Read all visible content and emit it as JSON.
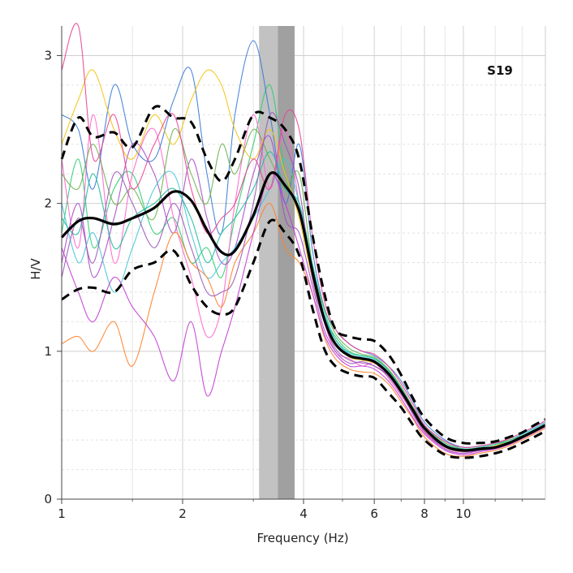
{
  "chart_data": {
    "type": "line",
    "title": "",
    "annotation": "S19",
    "xlabel": "Frequency (Hz)",
    "ylabel": "H/V",
    "x_scale": "log",
    "xlim": [
      1,
      16
    ],
    "ylim": [
      0,
      3.2
    ],
    "x_ticks": [
      1,
      2,
      4,
      6,
      8,
      10
    ],
    "y_ticks": [
      0,
      1,
      2,
      3
    ],
    "grid": true,
    "peak_frequency_band": {
      "f0_lower": 3.1,
      "f0": 3.45,
      "f0_upper": 3.8
    },
    "colors": {
      "band_light": "#c2c2c2",
      "band_dark": "#a0a0a0",
      "mean": "#000000",
      "std": "#000000",
      "windows": [
        "#2ecc71",
        "#ff66cc",
        "#3a7bd5",
        "#a64ac9",
        "#45c4d8",
        "#ff7f2a",
        "#6ab04c",
        "#c23bd4",
        "#f1c40f",
        "#1abc9c",
        "#9b59b6",
        "#e84393"
      ]
    },
    "series": [
      {
        "role": "mean",
        "x": [
          1,
          1.1,
          1.2,
          1.35,
          1.5,
          1.7,
          1.9,
          2.1,
          2.3,
          2.5,
          2.7,
          3.0,
          3.3,
          3.6,
          3.9,
          4.2,
          4.5,
          4.8,
          5.2,
          5.6,
          6.0,
          6.5,
          7.0,
          7.5,
          8.0,
          9.0,
          10,
          11,
          12,
          13,
          14,
          15,
          16
        ],
        "y": [
          1.77,
          1.88,
          1.9,
          1.86,
          1.9,
          1.97,
          2.08,
          2.02,
          1.82,
          1.67,
          1.68,
          1.92,
          2.2,
          2.12,
          1.95,
          1.55,
          1.22,
          1.05,
          0.97,
          0.95,
          0.93,
          0.85,
          0.73,
          0.6,
          0.48,
          0.36,
          0.33,
          0.34,
          0.35,
          0.38,
          0.42,
          0.46,
          0.5
        ]
      },
      {
        "role": "mean_plus_std",
        "x": [
          1,
          1.1,
          1.2,
          1.35,
          1.5,
          1.7,
          1.9,
          2.1,
          2.3,
          2.5,
          2.7,
          3.0,
          3.3,
          3.6,
          3.9,
          4.2,
          4.5,
          4.8,
          5.2,
          5.6,
          6.0,
          6.5,
          7.0,
          7.5,
          8.0,
          9.0,
          10,
          11,
          12,
          13,
          14,
          15,
          16
        ],
        "y": [
          2.3,
          2.58,
          2.45,
          2.48,
          2.38,
          2.65,
          2.58,
          2.55,
          2.3,
          2.15,
          2.3,
          2.6,
          2.58,
          2.5,
          2.3,
          1.8,
          1.4,
          1.15,
          1.1,
          1.08,
          1.07,
          0.98,
          0.84,
          0.68,
          0.55,
          0.42,
          0.38,
          0.38,
          0.39,
          0.42,
          0.45,
          0.5,
          0.54
        ]
      },
      {
        "role": "mean_minus_std",
        "x": [
          1,
          1.1,
          1.2,
          1.35,
          1.5,
          1.7,
          1.9,
          2.1,
          2.3,
          2.5,
          2.7,
          3.0,
          3.3,
          3.6,
          3.9,
          4.2,
          4.5,
          4.8,
          5.2,
          5.6,
          6.0,
          6.5,
          7.0,
          7.5,
          8.0,
          9.0,
          10,
          11,
          12,
          13,
          14,
          15,
          16
        ],
        "y": [
          1.35,
          1.42,
          1.43,
          1.4,
          1.55,
          1.6,
          1.68,
          1.45,
          1.3,
          1.25,
          1.3,
          1.6,
          1.88,
          1.8,
          1.65,
          1.3,
          1.02,
          0.9,
          0.85,
          0.83,
          0.82,
          0.72,
          0.62,
          0.5,
          0.4,
          0.3,
          0.28,
          0.29,
          0.31,
          0.34,
          0.38,
          0.42,
          0.46
        ]
      }
    ],
    "window_curves": {
      "x": [
        1,
        1.1,
        1.2,
        1.35,
        1.5,
        1.7,
        1.9,
        2.1,
        2.3,
        2.5,
        2.7,
        3.0,
        3.3,
        3.6,
        3.9,
        4.2,
        4.5,
        4.8,
        5.2,
        5.6,
        6.0,
        6.5,
        7.0,
        7.5,
        8.0,
        9.0,
        10,
        11,
        12,
        13,
        14,
        15,
        16
      ],
      "y": [
        [
          1.8,
          2.3,
          1.7,
          2.1,
          2.2,
          1.8,
          1.9,
          1.6,
          1.7,
          1.5,
          1.9,
          2.4,
          2.8,
          2.2,
          1.95,
          1.55,
          1.25,
          1.1,
          1.0,
          0.97,
          0.95,
          0.88,
          0.74,
          0.6,
          0.48,
          0.36,
          0.33,
          0.34,
          0.35,
          0.38,
          0.42,
          0.46,
          0.5
        ],
        [
          2.3,
          1.7,
          2.6,
          1.6,
          2.2,
          2.5,
          1.9,
          1.5,
          1.1,
          1.3,
          2.0,
          2.6,
          2.1,
          2.5,
          2.0,
          1.5,
          1.2,
          1.0,
          0.95,
          0.9,
          0.92,
          0.82,
          0.7,
          0.58,
          0.45,
          0.34,
          0.31,
          0.33,
          0.35,
          0.37,
          0.41,
          0.45,
          0.49
        ],
        [
          2.6,
          2.5,
          2.1,
          2.8,
          2.4,
          2.3,
          2.7,
          2.9,
          2.2,
          1.8,
          2.6,
          3.1,
          2.6,
          2.0,
          2.4,
          1.7,
          1.3,
          1.15,
          1.05,
          1.0,
          0.97,
          0.9,
          0.8,
          0.66,
          0.52,
          0.4,
          0.35,
          0.36,
          0.38,
          0.4,
          0.44,
          0.48,
          0.52
        ],
        [
          1.6,
          2.0,
          1.5,
          1.9,
          2.4,
          2.2,
          1.8,
          2.3,
          1.9,
          1.6,
          1.7,
          2.2,
          2.45,
          1.9,
          1.8,
          1.45,
          1.15,
          1.0,
          0.92,
          0.93,
          0.9,
          0.84,
          0.72,
          0.57,
          0.46,
          0.34,
          0.31,
          0.33,
          0.34,
          0.37,
          0.41,
          0.45,
          0.49
        ],
        [
          2.0,
          1.6,
          1.8,
          1.4,
          1.7,
          2.1,
          2.2,
          1.8,
          1.5,
          1.6,
          1.7,
          1.9,
          2.1,
          2.3,
          2.0,
          1.6,
          1.28,
          1.08,
          0.98,
          0.96,
          0.94,
          0.86,
          0.74,
          0.62,
          0.5,
          0.38,
          0.35,
          0.36,
          0.38,
          0.4,
          0.44,
          0.48,
          0.52
        ],
        [
          1.05,
          1.1,
          1.0,
          1.2,
          0.9,
          1.4,
          1.8,
          1.6,
          1.5,
          1.3,
          1.6,
          1.8,
          2.0,
          1.7,
          1.6,
          1.4,
          1.1,
          0.95,
          0.88,
          0.86,
          0.85,
          0.78,
          0.66,
          0.54,
          0.42,
          0.31,
          0.29,
          0.31,
          0.33,
          0.36,
          0.4,
          0.44,
          0.48
        ],
        [
          2.2,
          2.1,
          2.4,
          2.0,
          2.1,
          1.9,
          2.5,
          2.2,
          2.0,
          2.4,
          2.2,
          2.5,
          2.3,
          2.1,
          2.2,
          1.6,
          1.3,
          1.12,
          1.02,
          0.98,
          0.96,
          0.88,
          0.76,
          0.62,
          0.5,
          0.38,
          0.34,
          0.35,
          0.37,
          0.4,
          0.43,
          0.47,
          0.51
        ],
        [
          1.7,
          1.4,
          1.2,
          1.5,
          1.3,
          1.1,
          0.8,
          1.2,
          0.7,
          1.0,
          1.3,
          1.8,
          2.2,
          2.0,
          1.7,
          1.4,
          1.12,
          0.98,
          0.9,
          0.9,
          0.88,
          0.8,
          0.68,
          0.55,
          0.44,
          0.33,
          0.3,
          0.32,
          0.34,
          0.37,
          0.41,
          0.45,
          0.49
        ],
        [
          2.4,
          2.7,
          2.9,
          2.5,
          2.3,
          2.6,
          2.4,
          2.7,
          2.9,
          2.8,
          2.5,
          2.3,
          2.5,
          2.2,
          1.9,
          1.5,
          1.2,
          1.05,
          0.96,
          0.94,
          0.92,
          0.85,
          0.72,
          0.59,
          0.47,
          0.35,
          0.32,
          0.34,
          0.36,
          0.39,
          0.42,
          0.46,
          0.5
        ],
        [
          1.9,
          1.8,
          2.2,
          1.7,
          1.9,
          2.0,
          2.1,
          1.9,
          1.6,
          1.8,
          1.9,
          2.1,
          2.35,
          2.1,
          2.0,
          1.6,
          1.25,
          1.08,
          0.99,
          0.97,
          0.95,
          0.87,
          0.75,
          0.61,
          0.49,
          0.37,
          0.34,
          0.35,
          0.37,
          0.39,
          0.43,
          0.47,
          0.51
        ],
        [
          1.5,
          1.9,
          1.6,
          2.2,
          2.0,
          1.7,
          2.0,
          1.7,
          1.4,
          1.4,
          1.5,
          2.0,
          2.6,
          2.4,
          2.1,
          1.5,
          1.2,
          1.02,
          0.94,
          0.92,
          0.9,
          0.83,
          0.71,
          0.58,
          0.46,
          0.35,
          0.32,
          0.33,
          0.35,
          0.38,
          0.42,
          0.46,
          0.5
        ],
        [
          2.9,
          3.2,
          2.3,
          2.6,
          2.1,
          2.4,
          2.6,
          2.1,
          1.8,
          1.9,
          2.0,
          2.3,
          2.1,
          2.6,
          2.5,
          1.8,
          1.35,
          1.15,
          1.05,
          1.0,
          0.98,
          0.9,
          0.78,
          0.64,
          0.5,
          0.39,
          0.35,
          0.36,
          0.38,
          0.41,
          0.45,
          0.49,
          0.53
        ]
      ]
    }
  }
}
